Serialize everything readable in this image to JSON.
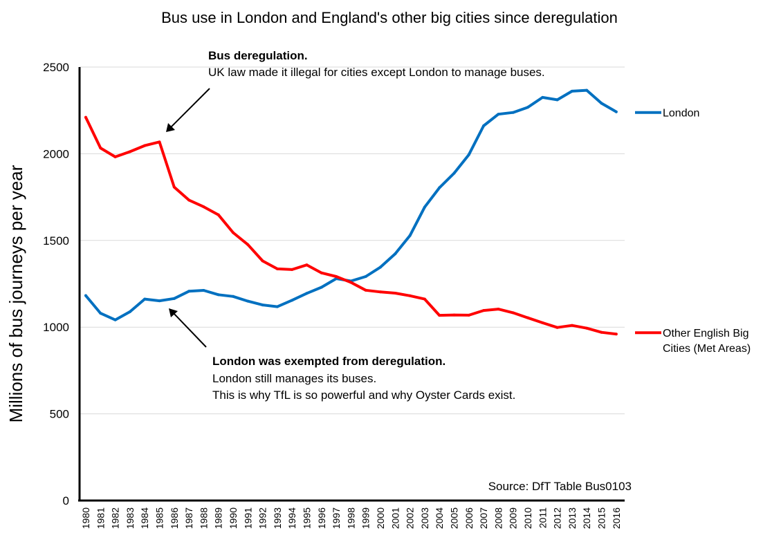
{
  "chart_data": {
    "type": "line",
    "title": "Bus use in London and England's other big cities since deregulation",
    "ylabel": "Millions of bus journeys per year",
    "xlabel": "",
    "ylim": [
      0,
      2500
    ],
    "yticks": [
      0,
      500,
      1000,
      1500,
      2000,
      2500
    ],
    "grid": "horizontal",
    "legend": "right, at line ends",
    "x": [
      "1980",
      "1981",
      "1982",
      "1983",
      "1984",
      "1985",
      "1986",
      "1987",
      "1988",
      "1989",
      "1990",
      "1991",
      "1992",
      "1993",
      "1994",
      "1995",
      "1996",
      "1997",
      "1998",
      "1999",
      "2000",
      "2001",
      "2002",
      "2003",
      "2004",
      "2005",
      "2006",
      "2007",
      "2008",
      "2009",
      "2010",
      "2011",
      "2012",
      "2013",
      "2014",
      "2015",
      "2016"
    ],
    "series": [
      {
        "name": "London",
        "color": "#0070C0",
        "values": [
          1182,
          1080,
          1042,
          1089,
          1162,
          1152,
          1165,
          1207,
          1212,
          1187,
          1177,
          1150,
          1128,
          1118,
          1155,
          1195,
          1230,
          1280,
          1266,
          1292,
          1346,
          1423,
          1528,
          1692,
          1804,
          1888,
          1995,
          2161,
          2228,
          2238,
          2268,
          2325,
          2311,
          2361,
          2366,
          2291,
          2242
        ]
      },
      {
        "name": "Other English Big Cities (Met Areas)",
        "name_lines": [
          "Other English Big",
          "Cities (Met Areas)"
        ],
        "color": "#FF0000",
        "values": [
          2210,
          2033,
          1982,
          2012,
          2047,
          2068,
          1808,
          1733,
          1694,
          1648,
          1545,
          1476,
          1382,
          1336,
          1332,
          1359,
          1313,
          1292,
          1258,
          1213,
          1203,
          1196,
          1181,
          1162,
          1068,
          1070,
          1069,
          1096,
          1104,
          1083,
          1054,
          1025,
          998,
          1010,
          994,
          970,
          960
        ]
      }
    ],
    "annotations": [
      {
        "id": "dereg",
        "bold": "Bus deregulation.",
        "lines": [
          "UK law made it illegal for cities except London to manage buses."
        ]
      },
      {
        "id": "exempt",
        "bold": "London was exempted from deregulation.",
        "lines": [
          "London still manages its buses.",
          "This is why TfL is so powerful and why Oyster Cards exist."
        ]
      }
    ],
    "source": "Source: DfT Table Bus0103"
  }
}
